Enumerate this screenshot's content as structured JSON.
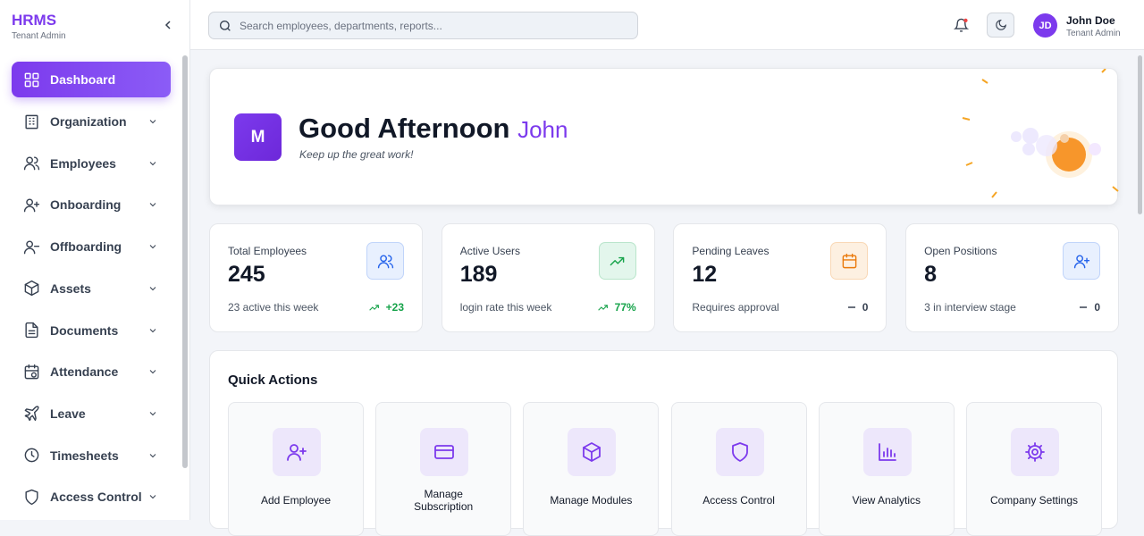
{
  "sidebar": {
    "brand": "HRMS",
    "role": "Tenant Admin",
    "nav": [
      "Dashboard",
      "Organization",
      "Employees",
      "Onboarding",
      "Offboarding",
      "Assets",
      "Documents",
      "Attendance",
      "Leave",
      "Timesheets",
      "Access Control"
    ]
  },
  "header": {
    "search_placeholder": "Search employees, departments, reports...",
    "user_initials": "JD",
    "user_name": "John Doe",
    "user_role": "Tenant Admin"
  },
  "welcome": {
    "avatar": "M",
    "greeting": "Good Afternoon",
    "name": "John",
    "subtitle": "Keep up the great work!"
  },
  "stats": [
    {
      "label": "Total Employees",
      "value": 245,
      "note": "23 active this week",
      "change": "+23"
    },
    {
      "label": "Active Users",
      "value": 189,
      "note": "login rate this week",
      "change": "77%"
    },
    {
      "label": "Pending Leaves",
      "value": 12,
      "note": "Requires approval",
      "change": "0"
    },
    {
      "label": "Open Positions",
      "value": 8,
      "note": "3 in interview stage",
      "change": "0"
    }
  ],
  "quick_actions": {
    "title": "Quick Actions",
    "items": [
      "Add Employee",
      "Manage Subscription",
      "Manage Modules",
      "Access Control",
      "View Analytics",
      "Company Settings"
    ]
  }
}
